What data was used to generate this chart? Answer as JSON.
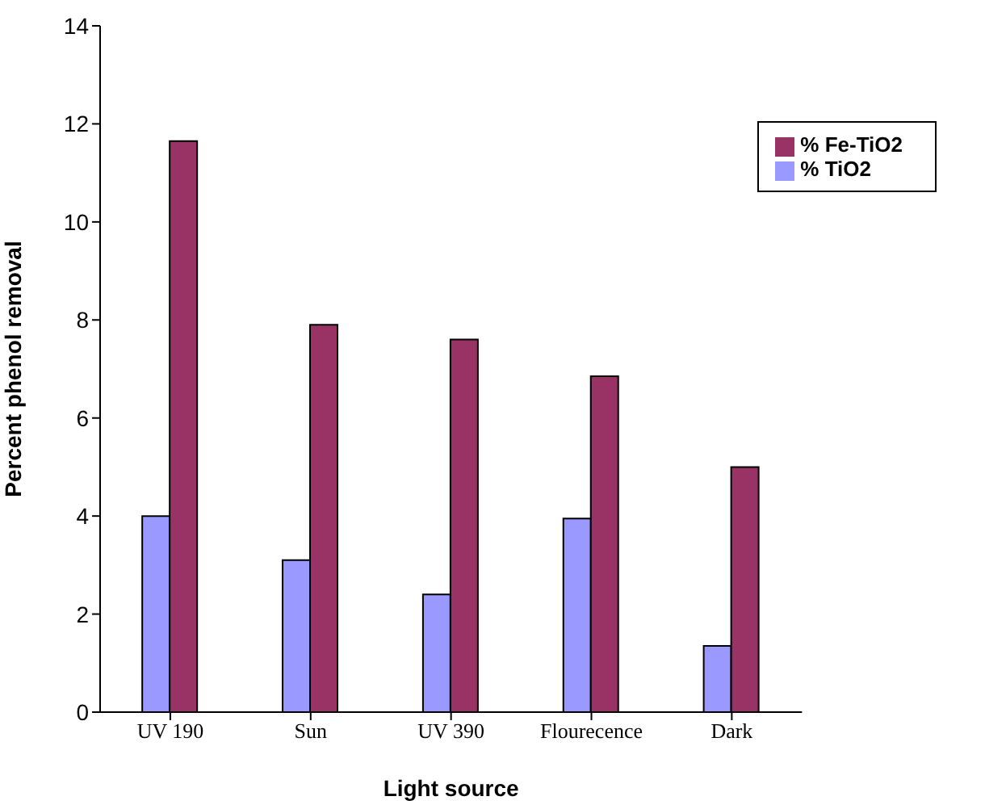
{
  "chart_data": {
    "type": "bar",
    "xlabel": "Light source",
    "ylabel": "Percent phenol removal",
    "categories": [
      "UV 190",
      "Sun",
      "UV 390",
      "Flourecence",
      "Dark"
    ],
    "series": [
      {
        "name": "% TiO2",
        "color": "#9999ff",
        "values": [
          4.0,
          3.1,
          2.4,
          3.95,
          1.35
        ]
      },
      {
        "name": "% Fe-TiO2",
        "color": "#993366",
        "values": [
          11.65,
          7.9,
          7.6,
          6.85,
          5.0
        ]
      }
    ],
    "ylim": [
      0,
      14
    ],
    "yticks": [
      0,
      2,
      4,
      6,
      8,
      10,
      12,
      14
    ],
    "grid": false,
    "legend": "top right"
  }
}
